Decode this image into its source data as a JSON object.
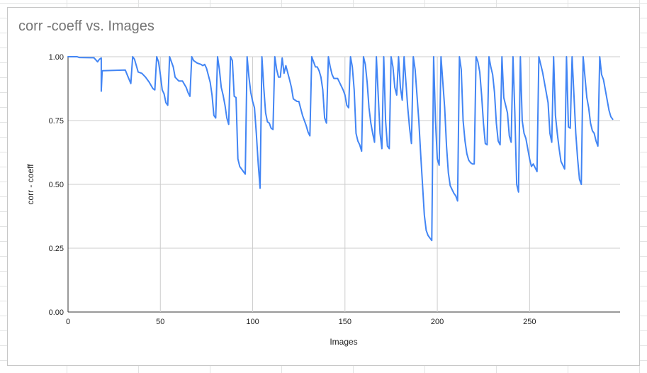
{
  "chart_data": {
    "type": "line",
    "title": "corr -coeff vs. Images",
    "xlabel": "Images",
    "ylabel": "corr - coeff",
    "xlim": [
      0,
      299
    ],
    "ylim": [
      0,
      1
    ],
    "x_ticks": [
      "0",
      "50",
      "100",
      "150",
      "200",
      "250"
    ],
    "x_tick_values": [
      0,
      50,
      100,
      150,
      200,
      250
    ],
    "y_ticks": [
      "0.00",
      "0.25",
      "0.50",
      "0.75",
      "1.00"
    ],
    "y_tick_values": [
      0,
      0.25,
      0.5,
      0.75,
      1.0
    ],
    "grid": true,
    "legend": "none",
    "series_color": "#4285f4",
    "series": [
      {
        "points": [
          [
            0,
            1.0
          ],
          [
            5,
            1.0
          ],
          [
            6,
            0.997
          ],
          [
            14,
            0.996
          ],
          [
            16,
            0.98
          ],
          [
            17,
            0.99
          ],
          [
            18,
            0.995
          ],
          [
            18,
            0.865
          ],
          [
            18.5,
            0.945
          ],
          [
            31,
            0.948
          ],
          [
            32,
            0.93
          ],
          [
            34,
            0.895
          ],
          [
            35,
            1.0
          ],
          [
            36,
            0.99
          ],
          [
            38,
            0.94
          ],
          [
            40,
            0.935
          ],
          [
            42,
            0.92
          ],
          [
            44,
            0.9
          ],
          [
            46,
            0.875
          ],
          [
            47,
            0.87
          ],
          [
            48,
            1.0
          ],
          [
            49,
            0.98
          ],
          [
            50,
            0.93
          ],
          [
            51,
            0.87
          ],
          [
            52,
            0.855
          ],
          [
            53,
            0.82
          ],
          [
            54,
            0.81
          ],
          [
            55,
            1.0
          ],
          [
            57,
            0.96
          ],
          [
            58,
            0.92
          ],
          [
            60,
            0.905
          ],
          [
            62,
            0.905
          ],
          [
            64,
            0.88
          ],
          [
            65,
            0.86
          ],
          [
            66,
            0.845
          ],
          [
            67,
            1.0
          ],
          [
            68,
            0.985
          ],
          [
            70,
            0.975
          ],
          [
            72,
            0.97
          ],
          [
            73,
            0.965
          ],
          [
            74,
            0.97
          ],
          [
            75,
            0.955
          ],
          [
            77,
            0.9
          ],
          [
            78,
            0.85
          ],
          [
            79,
            0.77
          ],
          [
            80,
            0.76
          ],
          [
            81,
            1.0
          ],
          [
            82,
            0.95
          ],
          [
            83,
            0.88
          ],
          [
            84,
            0.85
          ],
          [
            85,
            0.81
          ],
          [
            86,
            0.76
          ],
          [
            87,
            0.735
          ],
          [
            88,
            1.0
          ],
          [
            89,
            0.985
          ],
          [
            90,
            0.845
          ],
          [
            91,
            0.84
          ],
          [
            92,
            0.6
          ],
          [
            93,
            0.57
          ],
          [
            95,
            0.55
          ],
          [
            96,
            0.54
          ],
          [
            97,
            1.0
          ],
          [
            98,
            0.92
          ],
          [
            99,
            0.86
          ],
          [
            100,
            0.825
          ],
          [
            101,
            0.8
          ],
          [
            102,
            0.7
          ],
          [
            103,
            0.58
          ],
          [
            104,
            0.485
          ],
          [
            105,
            1.0
          ],
          [
            106,
            0.88
          ],
          [
            107,
            0.78
          ],
          [
            108,
            0.745
          ],
          [
            109,
            0.74
          ],
          [
            110,
            0.72
          ],
          [
            111,
            0.715
          ],
          [
            112,
            1.0
          ],
          [
            113,
            0.95
          ],
          [
            114,
            0.92
          ],
          [
            115,
            0.92
          ],
          [
            116,
            0.995
          ],
          [
            117,
            0.935
          ],
          [
            118,
            0.965
          ],
          [
            120,
            0.91
          ],
          [
            121,
            0.88
          ],
          [
            122,
            0.835
          ],
          [
            124,
            0.825
          ],
          [
            125,
            0.825
          ],
          [
            127,
            0.77
          ],
          [
            129,
            0.73
          ],
          [
            130,
            0.705
          ],
          [
            131,
            0.69
          ],
          [
            132,
            1.0
          ],
          [
            133,
            0.98
          ],
          [
            134,
            0.96
          ],
          [
            135,
            0.96
          ],
          [
            136,
            0.945
          ],
          [
            137,
            0.92
          ],
          [
            138,
            0.87
          ],
          [
            139,
            0.76
          ],
          [
            140,
            0.74
          ],
          [
            141,
            1.0
          ],
          [
            142,
            0.96
          ],
          [
            143,
            0.93
          ],
          [
            144,
            0.915
          ],
          [
            146,
            0.915
          ],
          [
            147,
            0.9
          ],
          [
            149,
            0.87
          ],
          [
            150,
            0.85
          ],
          [
            151,
            0.81
          ],
          [
            152,
            0.8
          ],
          [
            153,
            1.0
          ],
          [
            154,
            0.96
          ],
          [
            155,
            0.87
          ],
          [
            156,
            0.7
          ],
          [
            157,
            0.67
          ],
          [
            158,
            0.655
          ],
          [
            159,
            0.63
          ],
          [
            160,
            1.0
          ],
          [
            161,
            0.97
          ],
          [
            162,
            0.9
          ],
          [
            163,
            0.8
          ],
          [
            164,
            0.74
          ],
          [
            165,
            0.7
          ],
          [
            166,
            0.665
          ],
          [
            167,
            1.0
          ],
          [
            168,
            0.85
          ],
          [
            169,
            0.7
          ],
          [
            170,
            0.64
          ],
          [
            171,
            1.0
          ],
          [
            172,
            0.75
          ],
          [
            173,
            0.65
          ],
          [
            174,
            0.64
          ],
          [
            175,
            1.0
          ],
          [
            176,
            0.96
          ],
          [
            177,
            0.88
          ],
          [
            178,
            0.85
          ],
          [
            179,
            1.0
          ],
          [
            180,
            0.88
          ],
          [
            181,
            0.83
          ],
          [
            182,
            1.0
          ],
          [
            183,
            0.9
          ],
          [
            184,
            0.8
          ],
          [
            185,
            0.72
          ],
          [
            186,
            0.66
          ],
          [
            187,
            1.0
          ],
          [
            188,
            0.95
          ],
          [
            189,
            0.85
          ],
          [
            190,
            0.75
          ],
          [
            191,
            0.62
          ],
          [
            192,
            0.5
          ],
          [
            193,
            0.38
          ],
          [
            194,
            0.32
          ],
          [
            195,
            0.3
          ],
          [
            196,
            0.29
          ],
          [
            197,
            0.28
          ],
          [
            198,
            1.0
          ],
          [
            199,
            0.75
          ],
          [
            200,
            0.6
          ],
          [
            201,
            0.575
          ],
          [
            202,
            1.0
          ],
          [
            203,
            0.9
          ],
          [
            204,
            0.8
          ],
          [
            205,
            0.65
          ],
          [
            206,
            0.545
          ],
          [
            207,
            0.495
          ],
          [
            208,
            0.48
          ],
          [
            209,
            0.465
          ],
          [
            210,
            0.455
          ],
          [
            211,
            0.435
          ],
          [
            212,
            1.0
          ],
          [
            213,
            0.95
          ],
          [
            214,
            0.75
          ],
          [
            215,
            0.67
          ],
          [
            216,
            0.62
          ],
          [
            217,
            0.595
          ],
          [
            218,
            0.585
          ],
          [
            219,
            0.58
          ],
          [
            220,
            0.58
          ],
          [
            221,
            1.0
          ],
          [
            222,
            0.98
          ],
          [
            223,
            0.94
          ],
          [
            224,
            0.85
          ],
          [
            225,
            0.74
          ],
          [
            226,
            0.66
          ],
          [
            227,
            0.655
          ],
          [
            228,
            1.0
          ],
          [
            229,
            0.96
          ],
          [
            230,
            0.93
          ],
          [
            231,
            0.86
          ],
          [
            232,
            0.74
          ],
          [
            233,
            0.67
          ],
          [
            234,
            0.655
          ],
          [
            235,
            1.0
          ],
          [
            236,
            0.84
          ],
          [
            237,
            0.81
          ],
          [
            238,
            0.78
          ],
          [
            239,
            0.69
          ],
          [
            240,
            0.665
          ],
          [
            241,
            1.0
          ],
          [
            242,
            0.78
          ],
          [
            243,
            0.5
          ],
          [
            244,
            0.47
          ],
          [
            245,
            1.0
          ],
          [
            246,
            0.75
          ],
          [
            247,
            0.7
          ],
          [
            248,
            0.68
          ],
          [
            249,
            0.64
          ],
          [
            250,
            0.6
          ],
          [
            251,
            0.57
          ],
          [
            252,
            0.58
          ],
          [
            253,
            0.565
          ],
          [
            254,
            0.55
          ],
          [
            255,
            1.0
          ],
          [
            256,
            0.97
          ],
          [
            257,
            0.94
          ],
          [
            258,
            0.9
          ],
          [
            259,
            0.86
          ],
          [
            260,
            0.82
          ],
          [
            261,
            0.7
          ],
          [
            262,
            0.665
          ],
          [
            263,
            1.0
          ],
          [
            264,
            0.77
          ],
          [
            265,
            0.7
          ],
          [
            266,
            0.64
          ],
          [
            267,
            0.59
          ],
          [
            268,
            0.575
          ],
          [
            269,
            0.56
          ],
          [
            270,
            1.0
          ],
          [
            271,
            0.725
          ],
          [
            272,
            0.72
          ],
          [
            273,
            1.0
          ],
          [
            274,
            0.85
          ],
          [
            275,
            0.7
          ],
          [
            276,
            0.6
          ],
          [
            277,
            0.52
          ],
          [
            278,
            0.5
          ],
          [
            279,
            1.0
          ],
          [
            280,
            0.92
          ],
          [
            281,
            0.84
          ],
          [
            282,
            0.8
          ],
          [
            283,
            0.74
          ],
          [
            284,
            0.71
          ],
          [
            285,
            0.7
          ],
          [
            286,
            0.67
          ],
          [
            287,
            0.65
          ],
          [
            288,
            1.0
          ],
          [
            289,
            0.93
          ],
          [
            290,
            0.91
          ],
          [
            291,
            0.87
          ],
          [
            292,
            0.83
          ],
          [
            293,
            0.79
          ],
          [
            294,
            0.765
          ],
          [
            295,
            0.755
          ]
        ]
      }
    ]
  }
}
